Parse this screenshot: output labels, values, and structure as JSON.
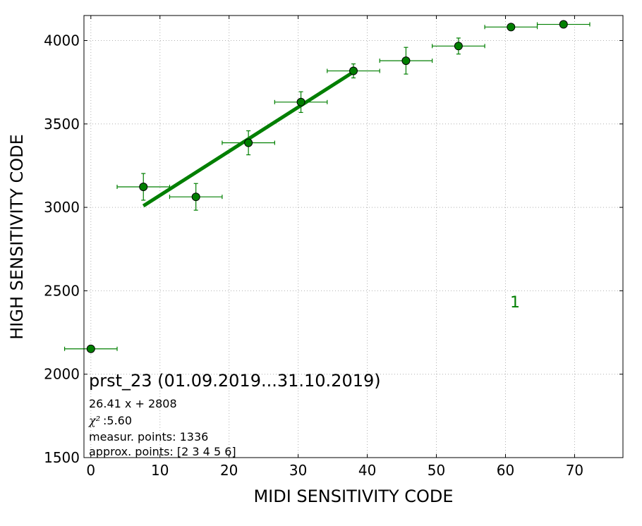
{
  "chart_data": {
    "type": "scatter",
    "xlabel": "MIDI SENSITIVITY CODE",
    "ylabel": "HIGH SENSITIVITY CODE",
    "xlim": [
      -1,
      77
    ],
    "ylim": [
      1500,
      4150
    ],
    "x_ticks": [
      "0",
      "10",
      "20",
      "30",
      "40",
      "50",
      "60",
      "70"
    ],
    "y_ticks": [
      "1500",
      "2000",
      "2500",
      "3000",
      "3500",
      "4000"
    ],
    "grid": true,
    "color": "#007f00",
    "points": [
      {
        "x": 0.0,
        "y": 2152,
        "xerr": 3.8,
        "yerr": 0
      },
      {
        "x": 7.6,
        "y": 3123,
        "xerr": 3.8,
        "yerr": 80
      },
      {
        "x": 15.2,
        "y": 3063,
        "xerr": 3.8,
        "yerr": 80
      },
      {
        "x": 22.8,
        "y": 3387,
        "xerr": 3.8,
        "yerr": 72
      },
      {
        "x": 30.4,
        "y": 3631,
        "xerr": 3.8,
        "yerr": 62
      },
      {
        "x": 38.0,
        "y": 3818,
        "xerr": 3.8,
        "yerr": 42
      },
      {
        "x": 45.6,
        "y": 3879,
        "xerr": 3.8,
        "yerr": 80
      },
      {
        "x": 53.2,
        "y": 3967,
        "xerr": 3.8,
        "yerr": 48
      },
      {
        "x": 60.8,
        "y": 4081,
        "xerr": 3.8,
        "yerr": 0
      },
      {
        "x": 68.4,
        "y": 4097,
        "xerr": 3.8,
        "yerr": 0
      }
    ],
    "fit": {
      "slope": 26.41,
      "intercept": 2808,
      "x_range": [
        7.6,
        38.0
      ]
    },
    "annotations": {
      "title": "prst_23 (01.09.2019...31.10.2019)",
      "equation": "26.41 x + 2808",
      "chi_symbol": "χ²",
      "chi_value": " :5.60",
      "measur_points": "measur. points: 1336",
      "approx_points": "approx. points: [2 3 4 5 6]",
      "marker_label": "1"
    }
  }
}
